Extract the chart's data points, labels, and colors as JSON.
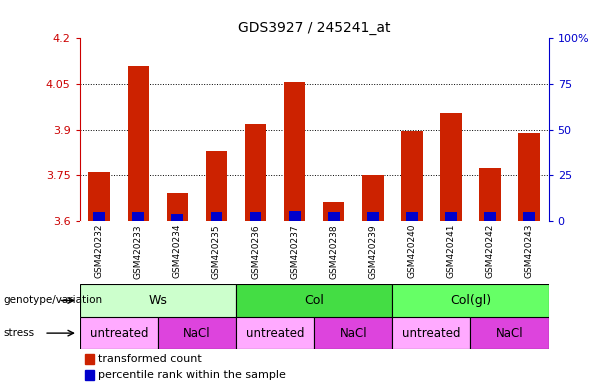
{
  "title": "GDS3927 / 245241_at",
  "samples": [
    "GSM420232",
    "GSM420233",
    "GSM420234",
    "GSM420235",
    "GSM420236",
    "GSM420237",
    "GSM420238",
    "GSM420239",
    "GSM420240",
    "GSM420241",
    "GSM420242",
    "GSM420243"
  ],
  "red_top": [
    3.762,
    4.11,
    3.69,
    3.83,
    3.92,
    4.057,
    3.662,
    3.752,
    3.895,
    3.955,
    3.773,
    3.888
  ],
  "blue_top": [
    3.628,
    3.628,
    3.623,
    3.628,
    3.63,
    3.632,
    3.628,
    3.628,
    3.628,
    3.63,
    3.628,
    3.63
  ],
  "base": 3.6,
  "ylim": [
    3.6,
    4.2
  ],
  "yticks_left": [
    3.6,
    3.75,
    3.9,
    4.05,
    4.2
  ],
  "ytick_labels_left": [
    "3.6",
    "3.75",
    "3.9",
    "4.05",
    "4.2"
  ],
  "ytick_labels_right": [
    "0",
    "25",
    "50",
    "75",
    "100%"
  ],
  "left_tick_color": "#cc0000",
  "right_tick_color": "#0000cc",
  "bar_width": 0.55,
  "red_color": "#cc2200",
  "blue_color": "#0000cc",
  "genotype_groups": [
    {
      "label": "Ws",
      "start": 0,
      "end": 3,
      "color": "#ccffcc"
    },
    {
      "label": "Col",
      "start": 4,
      "end": 7,
      "color": "#44dd44"
    },
    {
      "label": "Col(gl)",
      "start": 8,
      "end": 11,
      "color": "#66ff66"
    }
  ],
  "stress_groups": [
    {
      "label": "untreated",
      "start": 0,
      "end": 1,
      "color": "#ffaaff"
    },
    {
      "label": "NaCl",
      "start": 2,
      "end": 3,
      "color": "#dd44dd"
    },
    {
      "label": "untreated",
      "start": 4,
      "end": 5,
      "color": "#ffaaff"
    },
    {
      "label": "NaCl",
      "start": 6,
      "end": 7,
      "color": "#dd44dd"
    },
    {
      "label": "untreated",
      "start": 8,
      "end": 9,
      "color": "#ffaaff"
    },
    {
      "label": "NaCl",
      "start": 10,
      "end": 11,
      "color": "#dd44dd"
    }
  ],
  "legend_red_label": "transformed count",
  "legend_blue_label": "percentile rank within the sample",
  "genotype_label": "genotype/variation",
  "stress_label": "stress",
  "xticklabel_bg": "#cccccc"
}
